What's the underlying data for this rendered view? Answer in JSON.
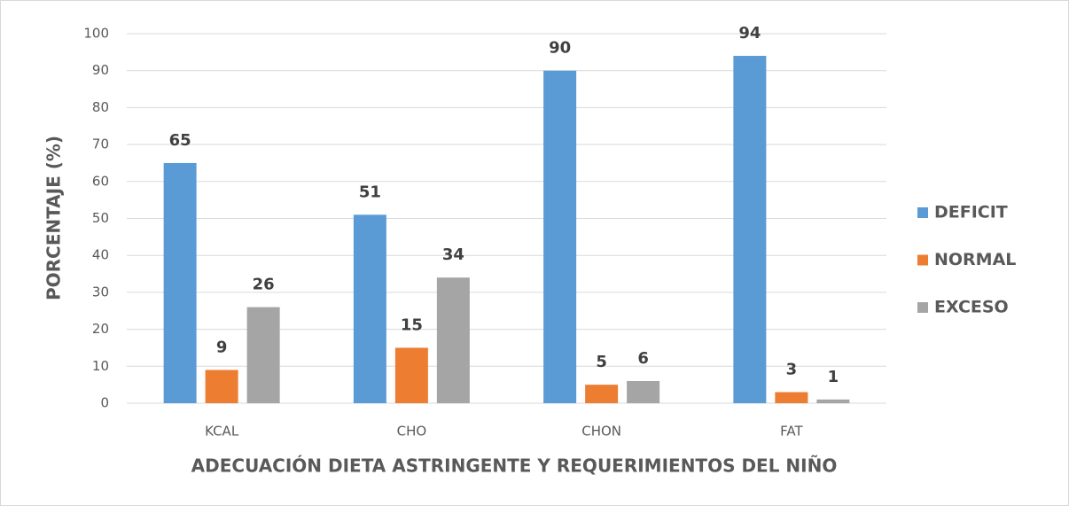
{
  "chart_data": {
    "type": "bar",
    "categories": [
      "KCAL",
      "CHO",
      "CHON",
      "FAT"
    ],
    "series": [
      {
        "name": "DEFICIT",
        "color": "#5b9bd5",
        "values": [
          65,
          51,
          90,
          94
        ]
      },
      {
        "name": "NORMAL",
        "color": "#ed7d31",
        "values": [
          9,
          15,
          5,
          3
        ]
      },
      {
        "name": "EXCESO",
        "color": "#a5a5a5",
        "values": [
          26,
          34,
          6,
          1
        ]
      }
    ],
    "ylim": [
      0,
      100
    ],
    "yticks": [
      0,
      10,
      20,
      30,
      40,
      50,
      60,
      70,
      80,
      90,
      100
    ],
    "xlabel": "ADECUACIÓN DIETA ASTRINGENTE Y REQUERIMIENTOS DEL NIÑO",
    "ylabel": "PORCENTAJE (%)",
    "grid": true,
    "legend": "right"
  }
}
